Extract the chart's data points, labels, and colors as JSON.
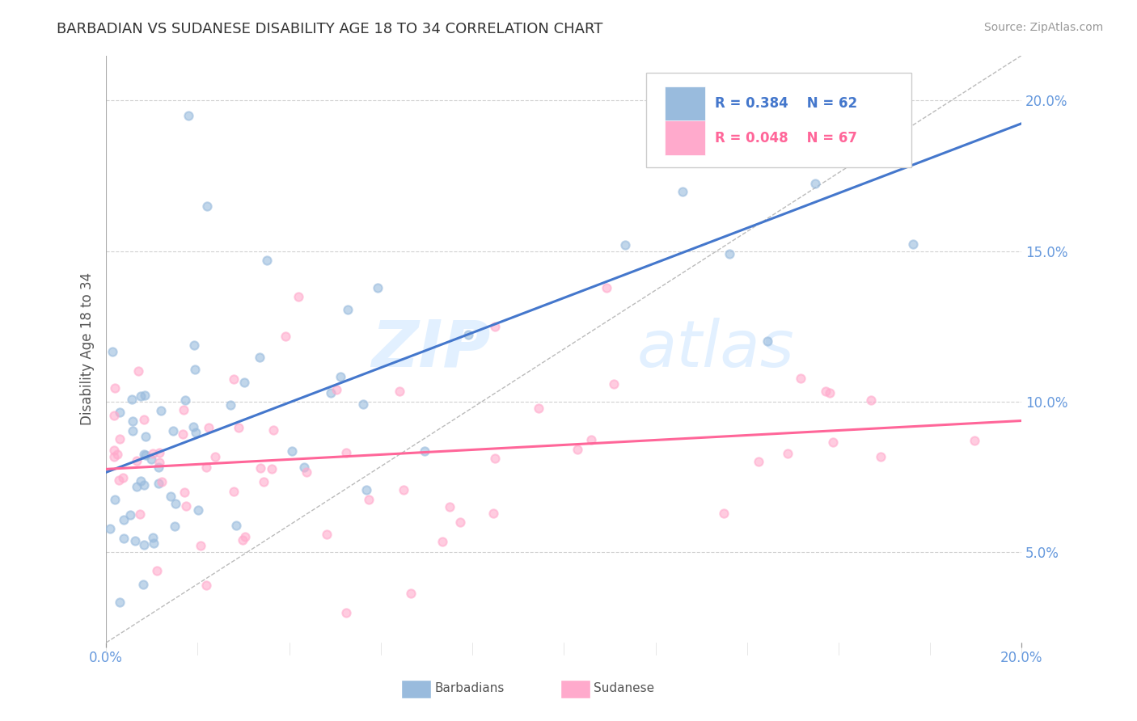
{
  "title": "BARBADIAN VS SUDANESE DISABILITY AGE 18 TO 34 CORRELATION CHART",
  "source_text": "Source: ZipAtlas.com",
  "ylabel": "Disability Age 18 to 34",
  "xlim": [
    0.0,
    0.2
  ],
  "ylim": [
    0.02,
    0.215
  ],
  "x_ticks": [
    0.0,
    0.2
  ],
  "y_ticks": [
    0.05,
    0.1,
    0.15,
    0.2
  ],
  "barbadian_color": "#99BBDD",
  "sudanese_color": "#FFAACC",
  "barbadian_line_color": "#4477CC",
  "sudanese_line_color": "#FF6699",
  "legend_R1": "R = 0.384",
  "legend_N1": "N = 62",
  "legend_R2": "R = 0.048",
  "legend_N2": "N = 67",
  "legend_label1": "Barbadians",
  "legend_label2": "Sudanese",
  "watermark_zip": "ZIP",
  "watermark_atlas": "atlas",
  "background_color": "#FFFFFF",
  "grid_color": "#CCCCCC",
  "tick_label_color": "#6699DD",
  "title_color": "#333333"
}
